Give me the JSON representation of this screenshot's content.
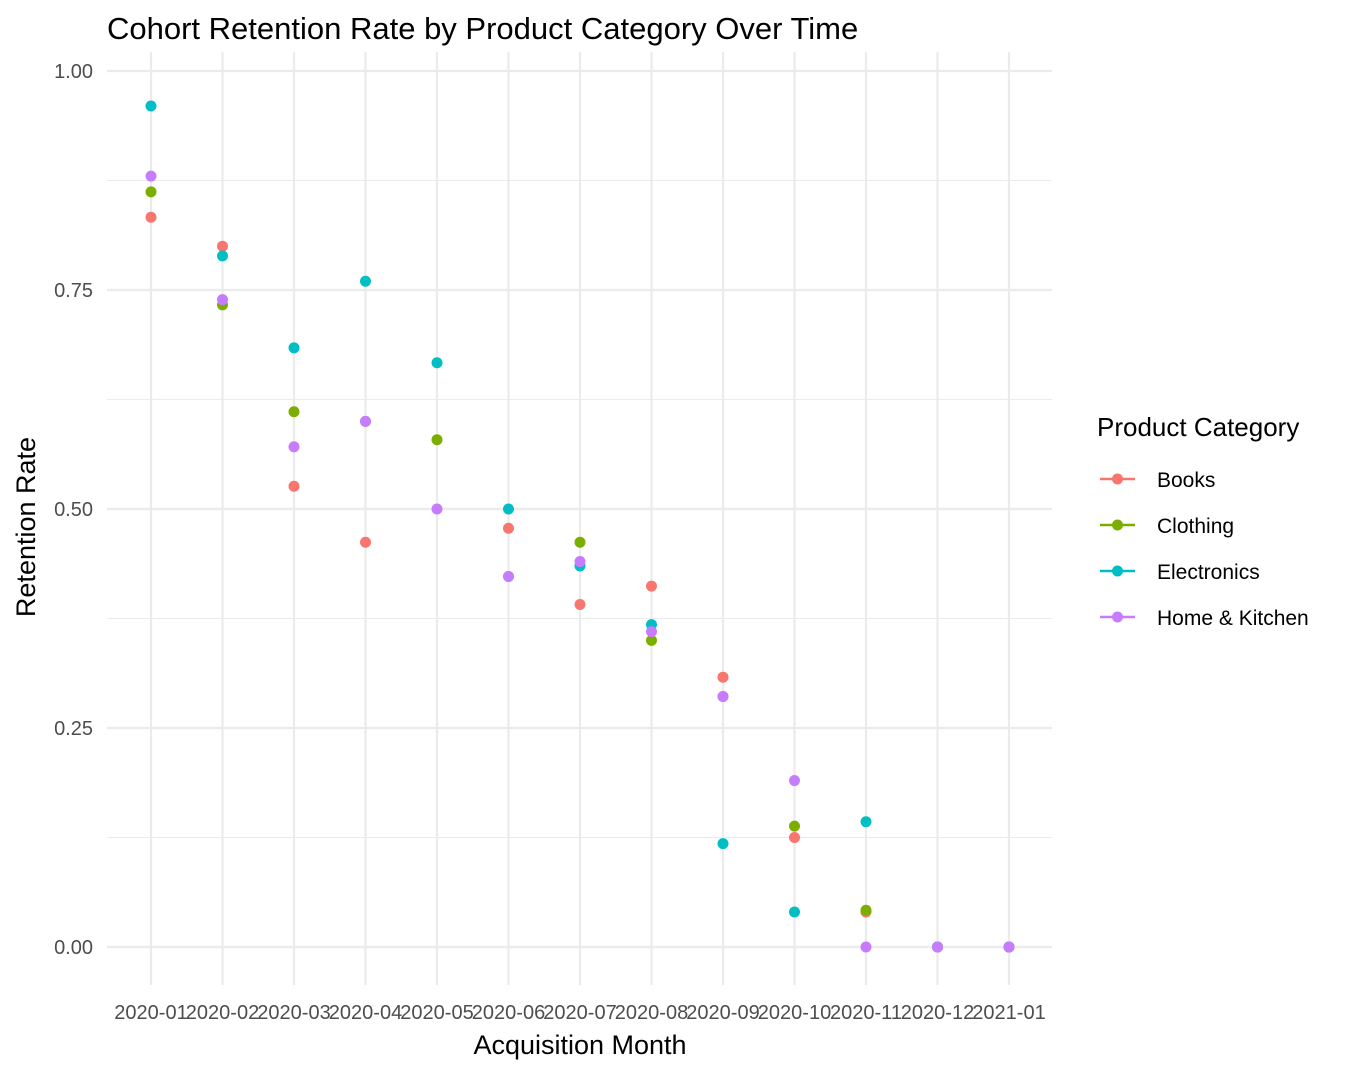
{
  "chart_data": {
    "type": "scatter",
    "title": "Cohort Retention Rate by Product Category Over Time",
    "xlabel": "Acquisition Month",
    "ylabel": "Retention Rate",
    "categories": [
      "2020-01",
      "2020-02",
      "2020-03",
      "2020-04",
      "2020-05",
      "2020-06",
      "2020-07",
      "2020-08",
      "2020-09",
      "2020-10",
      "2020-11",
      "2020-12",
      "2021-01"
    ],
    "ylim": [
      -0.045,
      1.02
    ],
    "yticks": [
      "0.00",
      "0.25",
      "0.50",
      "0.75",
      "1.00"
    ],
    "ytick_values": [
      0,
      0.25,
      0.5,
      0.75,
      1.0
    ],
    "grid": true,
    "legend": {
      "title": "Product Category",
      "position": "right"
    },
    "series": [
      {
        "name": "Books",
        "color": "#F8766D",
        "values": [
          0.833,
          0.8,
          0.526,
          0.462,
          null,
          0.478,
          0.391,
          0.412,
          0.308,
          0.125,
          0.04,
          0.0,
          0.0
        ]
      },
      {
        "name": "Clothing",
        "color": "#7CAE00",
        "values": [
          0.862,
          0.733,
          0.611,
          0.6,
          0.579,
          0.423,
          0.462,
          0.35,
          0.286,
          0.138,
          0.042,
          0.0,
          0.0
        ]
      },
      {
        "name": "Electronics",
        "color": "#00BFC4",
        "values": [
          0.96,
          0.789,
          0.684,
          0.76,
          0.667,
          0.5,
          0.435,
          0.368,
          0.118,
          0.04,
          0.143,
          0.0,
          0.0
        ]
      },
      {
        "name": "Home & Kitchen",
        "color": "#C77CFF",
        "values": [
          0.88,
          0.739,
          0.571,
          0.6,
          0.5,
          0.423,
          0.44,
          0.36,
          0.286,
          0.19,
          0.0,
          0.0,
          0.0
        ]
      }
    ]
  }
}
